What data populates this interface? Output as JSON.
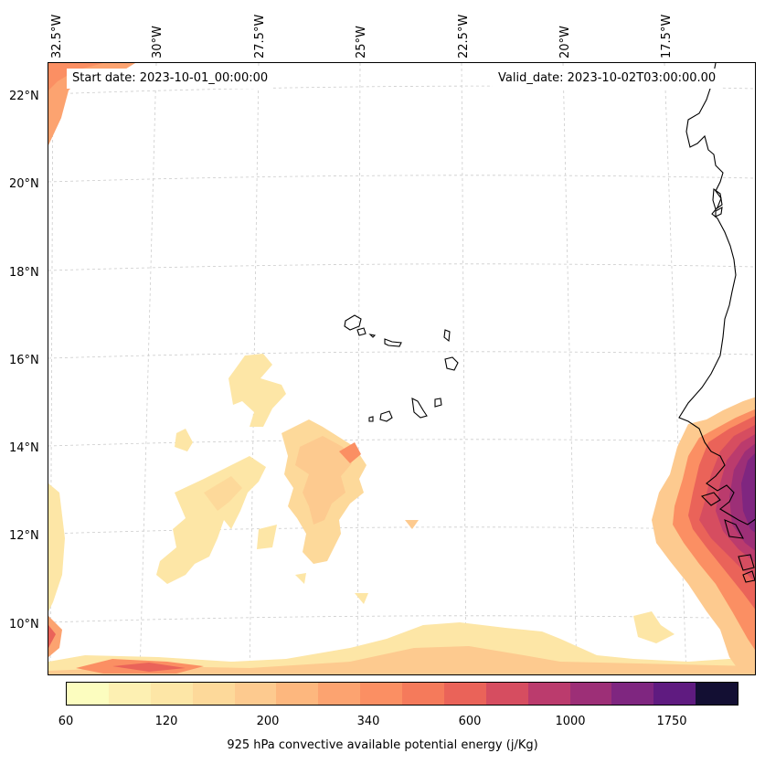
{
  "map": {
    "start_date": "Start date: 2023-10-01_00:00:00",
    "valid_date": "Valid_date: 2023-10-02T03:00:00.00",
    "lon_labels": [
      "32.5°W",
      "30°W",
      "27.5°W",
      "25°W",
      "22.5°W",
      "20°W",
      "17.5°W"
    ],
    "lat_labels": [
      "22°N",
      "20°N",
      "18°N",
      "16°N",
      "14°N",
      "12°N",
      "10°N"
    ]
  },
  "colorbar": {
    "title": "925 hPa convective available potential energy (j/Kg)",
    "ticks": [
      "60",
      "120",
      "200",
      "340",
      "600",
      "1000",
      "1750"
    ],
    "colors": [
      "#fcfdbf",
      "#fdf0b2",
      "#fde6a6",
      "#fdd99a",
      "#fdca8f",
      "#fdb77e",
      "#fca370",
      "#fb8f63",
      "#f57a5b",
      "#ea6359",
      "#d64d60",
      "#bb3b6d",
      "#9d2f77",
      "#7f2680",
      "#5f1b80",
      "#130f33"
    ]
  },
  "legend": {
    "low_color": "#fde6a6",
    "mid_color": "#fca370",
    "high_color": "#d64d60",
    "max_color": "#7f2680"
  }
}
